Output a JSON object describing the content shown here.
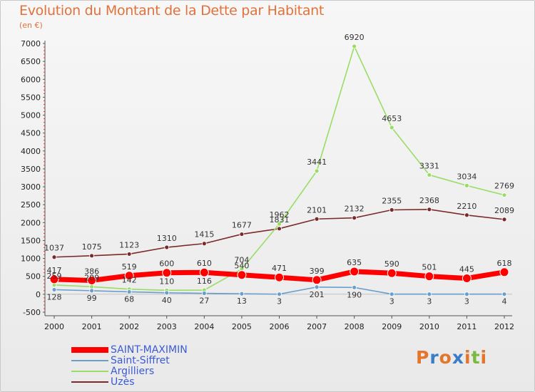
{
  "chart_data": {
    "type": "line",
    "title": "Evolution du Montant de la Dette par Habitant",
    "subtitle": "(en €)",
    "xlabel": "",
    "ylabel": "",
    "x": [
      "2000",
      "2001",
      "2002",
      "2003",
      "2004",
      "2005",
      "2006",
      "2007",
      "2008",
      "2009",
      "2010",
      "2011",
      "2012"
    ],
    "ylim": [
      -500,
      7000
    ],
    "yticks": [
      -500,
      0,
      500,
      1000,
      1500,
      2000,
      2500,
      3000,
      3500,
      4000,
      4500,
      5000,
      5500,
      6000,
      6500,
      7000
    ],
    "grid": false,
    "legend_position": "bottom-left",
    "series": [
      {
        "name": "SAINT-MAXIMIN",
        "color": "#ff0000",
        "values": [
          417,
          386,
          519,
          600,
          610,
          540,
          471,
          399,
          635,
          590,
          501,
          445,
          618
        ]
      },
      {
        "name": "Saint-Siffret",
        "color": "#6a9fcc",
        "values": [
          128,
          99,
          68,
          40,
          27,
          13,
          3,
          201,
          190,
          3,
          3,
          3,
          4
        ]
      },
      {
        "name": "Argilliers",
        "color": "#99dd66",
        "values": [
          259,
          209,
          142,
          110,
          116,
          704,
          1962,
          3441,
          6920,
          4653,
          3331,
          3034,
          2769
        ]
      },
      {
        "name": "Uzès",
        "color": "#7a2a2a",
        "values": [
          1037,
          1075,
          1123,
          1310,
          1415,
          1677,
          1831,
          2101,
          2132,
          2355,
          2368,
          2210,
          2089
        ]
      }
    ]
  },
  "logo": {
    "text": "Proxiti",
    "colors": [
      "#e3762b",
      "#3a7cc7",
      "#e3762b",
      "#3a7cc7",
      "#e3762b",
      "#7cb93e",
      "#e3762b"
    ]
  }
}
